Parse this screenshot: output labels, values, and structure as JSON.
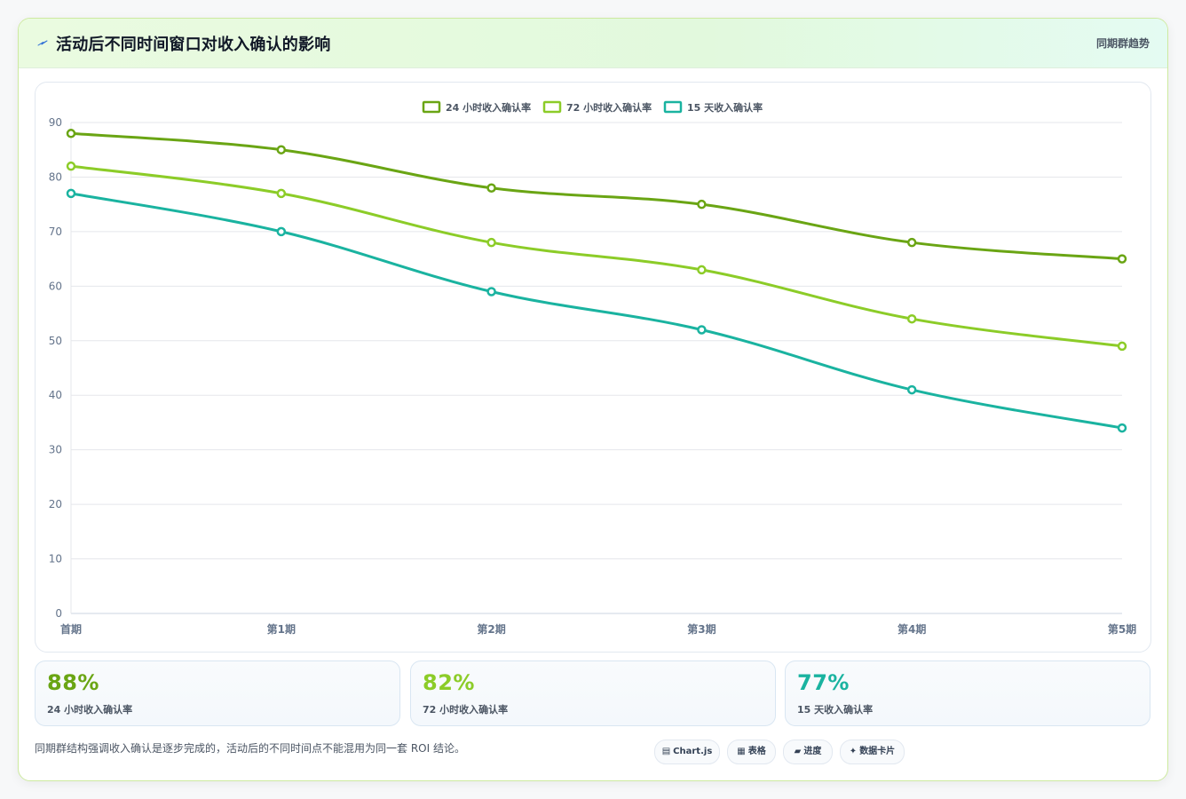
{
  "header": {
    "title": "活动后不同时间窗口对收入确认的影响",
    "tag": "同期群趋势",
    "icon": "lightning-icon"
  },
  "colors": {
    "series1": "#6aa514",
    "series2": "#8ccc28",
    "series3": "#1ab3a0",
    "accent": "#6aa514"
  },
  "chart_data": {
    "type": "line",
    "x": [
      "首期",
      "第1期",
      "第2期",
      "第3期",
      "第4期",
      "第5期"
    ],
    "ylim": [
      0,
      90
    ],
    "yticks": [
      0,
      10,
      20,
      30,
      40,
      50,
      60,
      70,
      80,
      90
    ],
    "grid": true,
    "legend": "top-center",
    "series": [
      {
        "name": "24 小时收入确认率",
        "values": [
          88,
          85,
          78,
          75,
          68,
          65
        ]
      },
      {
        "name": "72 小时收入确认率",
        "values": [
          82,
          77,
          68,
          63,
          54,
          49
        ]
      },
      {
        "name": "15 天收入确认率",
        "values": [
          77,
          70,
          59,
          52,
          41,
          34
        ]
      }
    ]
  },
  "stats": [
    {
      "value": "88%",
      "label": "24 小时收入确认率"
    },
    {
      "value": "82%",
      "label": "72 小时收入确认率"
    },
    {
      "value": "77%",
      "label": "15 天收入确认率"
    }
  ],
  "footnote": "同期群结构强调收入确认是逐步完成的，活动后的不同时间点不能混用为同一套 ROI 结论。",
  "chips": [
    {
      "icon": "▤",
      "label": "Chart.js"
    },
    {
      "icon": "▦",
      "label": "表格"
    },
    {
      "icon": "▰",
      "label": "进度"
    },
    {
      "icon": "✦",
      "label": "数据卡片"
    }
  ]
}
